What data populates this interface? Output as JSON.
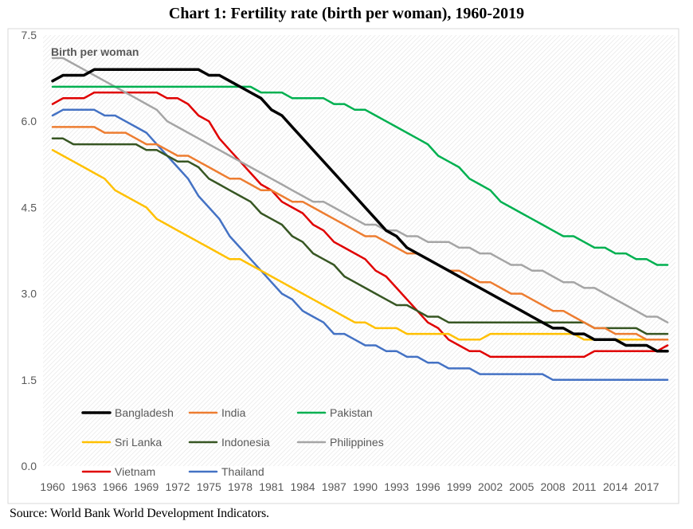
{
  "title": "Chart 1: Fertility rate (birth per woman), 1960-2019",
  "source": "Source: World Bank World Development Indicators.",
  "chart_data": {
    "type": "line",
    "ylabel": "Birth per woman",
    "ylim": [
      0,
      7.5
    ],
    "yticks": [
      "0.0",
      "1.5",
      "3.0",
      "4.5",
      "6.0",
      "7.5"
    ],
    "xlim": [
      1960,
      2019
    ],
    "xtick_labels": [
      "1960",
      "1963",
      "1966",
      "1969",
      "1972",
      "1975",
      "1978",
      "1981",
      "1984",
      "1987",
      "1990",
      "1993",
      "1996",
      "1999",
      "2002",
      "2005",
      "2008",
      "2011",
      "2014",
      "2017"
    ],
    "grid": false,
    "legend_position": "bottom-left",
    "x": [
      1960,
      1961,
      1962,
      1963,
      1964,
      1965,
      1966,
      1967,
      1968,
      1969,
      1970,
      1971,
      1972,
      1973,
      1974,
      1975,
      1976,
      1977,
      1978,
      1979,
      1980,
      1981,
      1982,
      1983,
      1984,
      1985,
      1986,
      1987,
      1988,
      1989,
      1990,
      1991,
      1992,
      1993,
      1994,
      1995,
      1996,
      1997,
      1998,
      1999,
      2000,
      2001,
      2002,
      2003,
      2004,
      2005,
      2006,
      2007,
      2008,
      2009,
      2010,
      2011,
      2012,
      2013,
      2014,
      2015,
      2016,
      2017,
      2018,
      2019
    ],
    "series": [
      {
        "name": "Bangladesh",
        "color": "#000000",
        "width": 3.5,
        "values": [
          6.7,
          6.8,
          6.8,
          6.8,
          6.9,
          6.9,
          6.9,
          6.9,
          6.9,
          6.9,
          6.9,
          6.9,
          6.9,
          6.9,
          6.9,
          6.8,
          6.8,
          6.7,
          6.6,
          6.5,
          6.4,
          6.2,
          6.1,
          5.9,
          5.7,
          5.5,
          5.3,
          5.1,
          4.9,
          4.7,
          4.5,
          4.3,
          4.1,
          4.0,
          3.8,
          3.7,
          3.6,
          3.5,
          3.4,
          3.3,
          3.2,
          3.1,
          3.0,
          2.9,
          2.8,
          2.7,
          2.6,
          2.5,
          2.4,
          2.4,
          2.3,
          2.3,
          2.2,
          2.2,
          2.2,
          2.1,
          2.1,
          2.1,
          2.0,
          2.0
        ]
      },
      {
        "name": "India",
        "color": "#ed7d31",
        "width": 2.5,
        "values": [
          5.9,
          5.9,
          5.9,
          5.9,
          5.9,
          5.8,
          5.8,
          5.8,
          5.7,
          5.6,
          5.6,
          5.5,
          5.4,
          5.4,
          5.3,
          5.2,
          5.1,
          5.0,
          5.0,
          4.9,
          4.8,
          4.8,
          4.7,
          4.6,
          4.6,
          4.5,
          4.4,
          4.3,
          4.2,
          4.1,
          4.0,
          4.0,
          3.9,
          3.8,
          3.7,
          3.7,
          3.6,
          3.5,
          3.4,
          3.4,
          3.3,
          3.2,
          3.2,
          3.1,
          3.0,
          3.0,
          2.9,
          2.8,
          2.7,
          2.7,
          2.6,
          2.5,
          2.4,
          2.4,
          2.3,
          2.3,
          2.3,
          2.2,
          2.2,
          2.2
        ]
      },
      {
        "name": "Pakistan",
        "color": "#00b050",
        "width": 2.5,
        "values": [
          6.6,
          6.6,
          6.6,
          6.6,
          6.6,
          6.6,
          6.6,
          6.6,
          6.6,
          6.6,
          6.6,
          6.6,
          6.6,
          6.6,
          6.6,
          6.6,
          6.6,
          6.6,
          6.6,
          6.6,
          6.5,
          6.5,
          6.5,
          6.4,
          6.4,
          6.4,
          6.4,
          6.3,
          6.3,
          6.2,
          6.2,
          6.1,
          6.0,
          5.9,
          5.8,
          5.7,
          5.6,
          5.4,
          5.3,
          5.2,
          5.0,
          4.9,
          4.8,
          4.6,
          4.5,
          4.4,
          4.3,
          4.2,
          4.1,
          4.0,
          4.0,
          3.9,
          3.8,
          3.8,
          3.7,
          3.7,
          3.6,
          3.6,
          3.5,
          3.5
        ]
      },
      {
        "name": "Sri Lanka",
        "color": "#ffc000",
        "width": 2.5,
        "values": [
          5.5,
          5.4,
          5.3,
          5.2,
          5.1,
          5.0,
          4.8,
          4.7,
          4.6,
          4.5,
          4.3,
          4.2,
          4.1,
          4.0,
          3.9,
          3.8,
          3.7,
          3.6,
          3.6,
          3.5,
          3.4,
          3.3,
          3.2,
          3.1,
          3.0,
          2.9,
          2.8,
          2.7,
          2.6,
          2.5,
          2.5,
          2.4,
          2.4,
          2.4,
          2.3,
          2.3,
          2.3,
          2.3,
          2.3,
          2.2,
          2.2,
          2.2,
          2.3,
          2.3,
          2.3,
          2.3,
          2.3,
          2.3,
          2.3,
          2.3,
          2.3,
          2.2,
          2.2,
          2.2,
          2.2,
          2.2,
          2.2,
          2.2,
          2.2,
          2.2
        ]
      },
      {
        "name": "Indonesia",
        "color": "#375623",
        "width": 2.5,
        "values": [
          5.7,
          5.7,
          5.6,
          5.6,
          5.6,
          5.6,
          5.6,
          5.6,
          5.6,
          5.5,
          5.5,
          5.4,
          5.3,
          5.3,
          5.2,
          5.0,
          4.9,
          4.8,
          4.7,
          4.6,
          4.4,
          4.3,
          4.2,
          4.0,
          3.9,
          3.7,
          3.6,
          3.5,
          3.3,
          3.2,
          3.1,
          3.0,
          2.9,
          2.8,
          2.8,
          2.7,
          2.6,
          2.6,
          2.5,
          2.5,
          2.5,
          2.5,
          2.5,
          2.5,
          2.5,
          2.5,
          2.5,
          2.5,
          2.5,
          2.5,
          2.5,
          2.5,
          2.4,
          2.4,
          2.4,
          2.4,
          2.4,
          2.3,
          2.3,
          2.3
        ]
      },
      {
        "name": "Philippines",
        "color": "#a5a5a5",
        "width": 2.5,
        "values": [
          7.1,
          7.1,
          7.0,
          6.9,
          6.8,
          6.7,
          6.6,
          6.5,
          6.4,
          6.3,
          6.2,
          6.0,
          5.9,
          5.8,
          5.7,
          5.6,
          5.5,
          5.4,
          5.3,
          5.2,
          5.1,
          5.0,
          4.9,
          4.8,
          4.7,
          4.6,
          4.6,
          4.5,
          4.4,
          4.3,
          4.2,
          4.2,
          4.1,
          4.1,
          4.0,
          4.0,
          3.9,
          3.9,
          3.9,
          3.8,
          3.8,
          3.7,
          3.7,
          3.6,
          3.5,
          3.5,
          3.4,
          3.4,
          3.3,
          3.2,
          3.2,
          3.1,
          3.1,
          3.0,
          2.9,
          2.8,
          2.7,
          2.6,
          2.6,
          2.5
        ]
      },
      {
        "name": "Vietnam",
        "color": "#e00000",
        "width": 2.5,
        "values": [
          6.3,
          6.4,
          6.4,
          6.4,
          6.5,
          6.5,
          6.5,
          6.5,
          6.5,
          6.5,
          6.5,
          6.4,
          6.4,
          6.3,
          6.1,
          6.0,
          5.7,
          5.5,
          5.3,
          5.1,
          4.9,
          4.8,
          4.6,
          4.5,
          4.4,
          4.2,
          4.1,
          3.9,
          3.8,
          3.7,
          3.6,
          3.4,
          3.3,
          3.1,
          2.9,
          2.7,
          2.5,
          2.4,
          2.2,
          2.1,
          2.0,
          2.0,
          1.9,
          1.9,
          1.9,
          1.9,
          1.9,
          1.9,
          1.9,
          1.9,
          1.9,
          1.9,
          2.0,
          2.0,
          2.0,
          2.0,
          2.0,
          2.0,
          2.0,
          2.1
        ]
      },
      {
        "name": "Thailand",
        "color": "#4472c4",
        "width": 2.5,
        "values": [
          6.1,
          6.2,
          6.2,
          6.2,
          6.2,
          6.1,
          6.1,
          6.0,
          5.9,
          5.8,
          5.6,
          5.4,
          5.2,
          5.0,
          4.7,
          4.5,
          4.3,
          4.0,
          3.8,
          3.6,
          3.4,
          3.2,
          3.0,
          2.9,
          2.7,
          2.6,
          2.5,
          2.3,
          2.3,
          2.2,
          2.1,
          2.1,
          2.0,
          2.0,
          1.9,
          1.9,
          1.8,
          1.8,
          1.7,
          1.7,
          1.7,
          1.6,
          1.6,
          1.6,
          1.6,
          1.6,
          1.6,
          1.6,
          1.5,
          1.5,
          1.5,
          1.5,
          1.5,
          1.5,
          1.5,
          1.5,
          1.5,
          1.5,
          1.5,
          1.5
        ]
      }
    ]
  }
}
